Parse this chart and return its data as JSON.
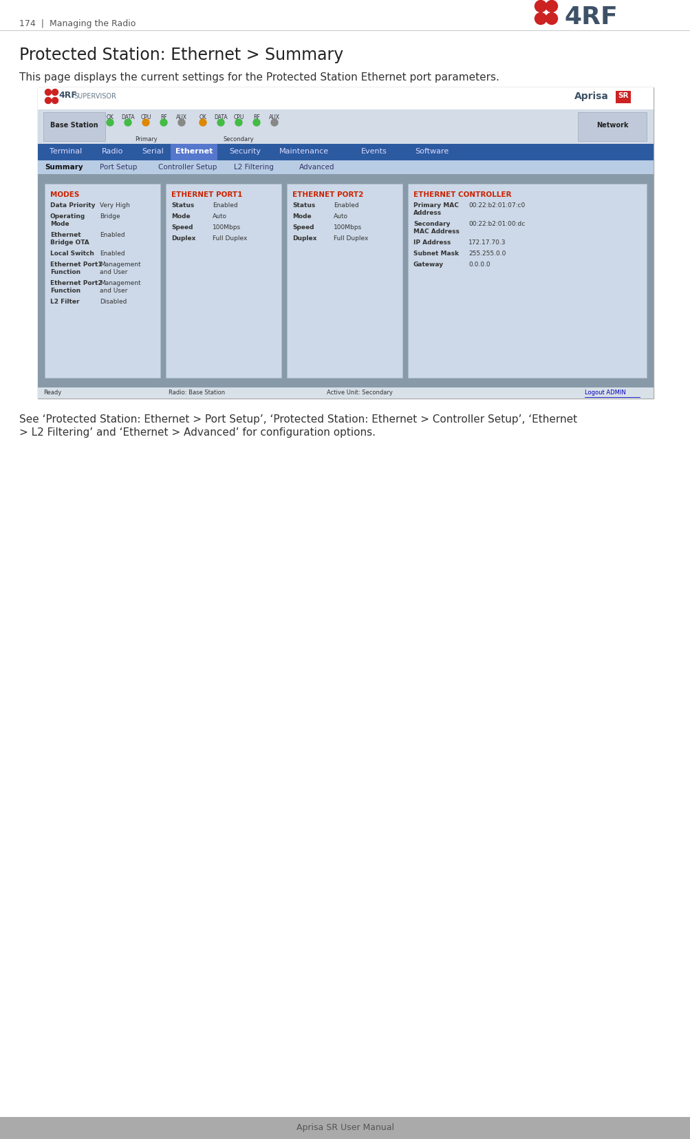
{
  "page_number": "174",
  "section": "Managing the Radio",
  "title": "Protected Station: Ethernet > Summary",
  "body_text": "This page displays the current settings for the Protected Station Ethernet port parameters.",
  "footer_text": "Aprisa SR User Manual",
  "note_text": "See ‘Protected Station: Ethernet > Port Setup’, ‘Protected Station: Ethernet > Controller Setup’, ‘Ethernet\n> L2 Filtering’ and ‘Ethernet > Advanced’ for configuration options.",
  "bg_color": "#ffffff",
  "footer_bg_color": "#b0b0b0",
  "modes_panel": {
    "title": "MODES",
    "rows": [
      [
        "Data Priority",
        "Very High"
      ],
      [
        "Operating\nMode",
        "Bridge"
      ],
      [
        "Ethernet\nBridge OTA",
        "Enabled"
      ],
      [
        "Local Switch",
        "Enabled"
      ],
      [
        "Ethernet Port1\nFunction",
        "Management\nand User"
      ],
      [
        "Ethernet Port2\nFunction",
        "Management\nand User"
      ],
      [
        "L2 Filter",
        "Disabled"
      ]
    ]
  },
  "port1_panel": {
    "title": "ETHERNET PORT1",
    "rows": [
      [
        "Status",
        "Enabled"
      ],
      [
        "Mode",
        "Auto"
      ],
      [
        "Speed",
        "100Mbps"
      ],
      [
        "Duplex",
        "Full Duplex"
      ]
    ]
  },
  "port2_panel": {
    "title": "ETHERNET PORT2",
    "rows": [
      [
        "Status",
        "Enabled"
      ],
      [
        "Mode",
        "Auto"
      ],
      [
        "Speed",
        "100Mbps"
      ],
      [
        "Duplex",
        "Full Duplex"
      ]
    ]
  },
  "controller_panel": {
    "title": "ETHERNET CONTROLLER",
    "rows": [
      [
        "Primary MAC\nAddress",
        "00:22:b2:01:07:c0"
      ],
      [
        "Secondary\nMAC Address",
        "00:22:b2:01:00:dc"
      ],
      [
        "IP Address",
        "172.17.70.3"
      ],
      [
        "Subnet Mask",
        "255.255.0.0"
      ],
      [
        "Gateway",
        "0.0.0.0"
      ]
    ]
  },
  "nav_items": [
    "Terminal",
    "Radio",
    "Serial",
    "Ethernet",
    "Security",
    "Maintenance",
    "Events",
    "Software"
  ],
  "active_nav": "Ethernet",
  "sub_nav_items": [
    "Summary",
    "Port Setup",
    "Controller Setup",
    "L2 Filtering",
    "Advanced"
  ],
  "active_sub_nav": "Summary",
  "primary_leds": [
    "#44bb44",
    "#44bb44",
    "#dd8800",
    "#44bb44",
    "#888888"
  ],
  "secondary_leds": [
    "#dd8800",
    "#44bb44",
    "#44bb44",
    "#44bb44",
    "#888888"
  ]
}
